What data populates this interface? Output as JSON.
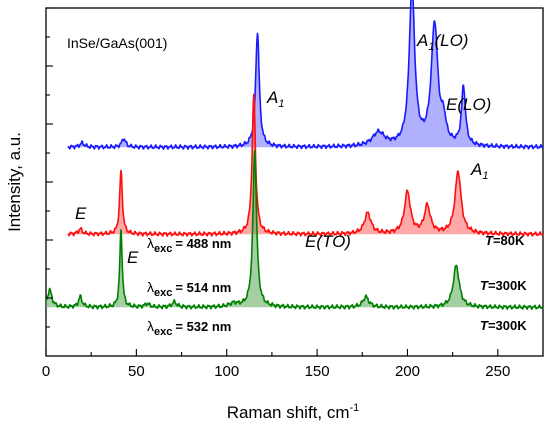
{
  "chart_data": {
    "type": "line",
    "title": "",
    "xlabel": "Raman shift, cm",
    "xlabel_superscript": "-1",
    "ylabel": "Intensity, a.u.",
    "xlim": [
      0,
      275
    ],
    "ylim": [
      0,
      100
    ],
    "x_ticks": [
      0,
      50,
      100,
      150,
      200,
      250
    ],
    "x_tick_labels": [
      "0",
      "50",
      "100",
      "150",
      "200",
      "250"
    ],
    "y_tick_labels_shown": false,
    "grid": false,
    "series": [
      {
        "color": "#1a1aff",
        "fill_color": "#6f6fff",
        "baseline": 60,
        "x_range": [
          12,
          275
        ],
        "lorentz_peaks": [
          {
            "x": 20,
            "amplitude": 1.2,
            "width": 1.5
          },
          {
            "x": 43,
            "amplitude": 2.5,
            "width": 1.3
          },
          {
            "x": 117,
            "amplitude": 33,
            "width": 1.2
          },
          {
            "x": 184,
            "amplitude": 4,
            "width": 4
          },
          {
            "x": 202.5,
            "amplitude": 46,
            "width": 1.8
          },
          {
            "x": 215,
            "amplitude": 35,
            "width": 2.2
          },
          {
            "x": 220,
            "amplitude": 6,
            "width": 1.5
          },
          {
            "x": 231,
            "amplitude": 17,
            "width": 1.3
          }
        ]
      },
      {
        "color": "#ff0d0d",
        "fill_color": "#ff6060",
        "baseline": 35,
        "x_range": [
          12,
          275
        ],
        "lorentz_peaks": [
          {
            "x": 19,
            "amplitude": 1.5,
            "width": 1.3
          },
          {
            "x": 41.5,
            "amplitude": 18,
            "width": 0.9
          },
          {
            "x": 115,
            "amplitude": 40,
            "width": 1.1
          },
          {
            "x": 178,
            "amplitude": 6,
            "width": 2.2
          },
          {
            "x": 200,
            "amplitude": 12,
            "width": 2.0
          },
          {
            "x": 211,
            "amplitude": 8,
            "width": 2.0
          },
          {
            "x": 228,
            "amplitude": 18,
            "width": 2.0
          }
        ]
      },
      {
        "color": "#008000",
        "fill_color": "#57a857",
        "baseline": 14,
        "x_range": [
          0,
          275
        ],
        "lorentz_peaks": [
          {
            "x": 2,
            "amplitude": 5,
            "width": 1.5
          },
          {
            "x": 19,
            "amplitude": 3,
            "width": 1.2
          },
          {
            "x": 41.5,
            "amplitude": 22,
            "width": 0.8
          },
          {
            "x": 56,
            "amplitude": 1,
            "width": 1.5
          },
          {
            "x": 71,
            "amplitude": 1.5,
            "width": 1.5
          },
          {
            "x": 104,
            "amplitude": 1,
            "width": 3
          },
          {
            "x": 115.5,
            "amplitude": 45,
            "width": 1.2
          },
          {
            "x": 177,
            "amplitude": 3,
            "width": 2
          },
          {
            "x": 227,
            "amplitude": 12,
            "width": 2
          }
        ]
      }
    ]
  },
  "annotations": {
    "sample": "InSe/GaAs(001)",
    "peak_A1_main": "A",
    "peak_A1_main_sub": "1",
    "peak_A1_LO_base": "A",
    "peak_A1_LO_sub": "1",
    "peak_A1_LO_tail": "(LO)",
    "peak_E_LO": "E(LO)",
    "peak_A1_high": "A",
    "peak_A1_high_sub": "1",
    "peak_E_left": "E",
    "peak_E_red": "E",
    "peak_E_TO": "E(TO)",
    "exc_blue_lambda": "λ",
    "exc_blue_sub": "exc",
    "exc_blue_value": "= 488 nm",
    "exc_red_lambda": "λ",
    "exc_red_sub": "exc",
    "exc_red_value": "= 514 nm",
    "exc_green_lambda": "λ",
    "exc_green_sub": "exc",
    "exc_green_value": "= 532 nm",
    "temp_blue_T": "T",
    "temp_blue_value": "=80K",
    "temp_red_T": "T",
    "temp_red_value": "=300K",
    "temp_green_T": "T",
    "temp_green_value": "=300K"
  }
}
